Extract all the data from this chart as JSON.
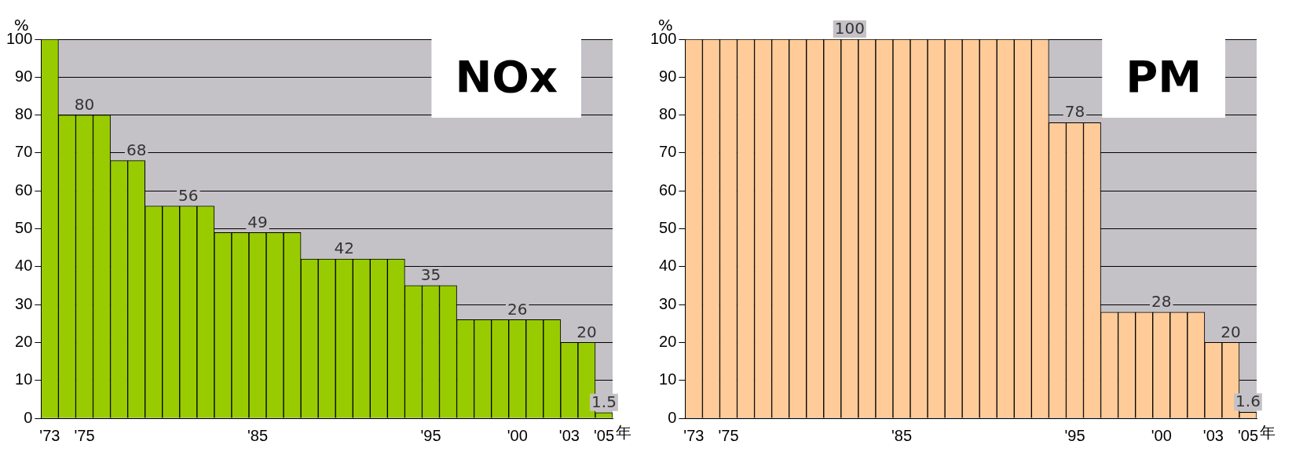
{
  "chart_data": [
    {
      "type": "bar",
      "title": "NOx",
      "xlabel": "年",
      "ylabel": "%",
      "color": "#99cc00",
      "grid": "y",
      "ylim": [
        0,
        100
      ],
      "yticks": [
        0,
        10,
        20,
        30,
        40,
        50,
        60,
        70,
        80,
        90,
        100
      ],
      "categories": [
        "'73",
        null,
        "'75",
        null,
        null,
        null,
        null,
        null,
        null,
        null,
        null,
        null,
        "'85",
        null,
        null,
        null,
        null,
        null,
        null,
        null,
        null,
        null,
        "'95",
        null,
        null,
        null,
        null,
        "'00",
        null,
        null,
        "'03",
        null,
        "'05"
      ],
      "values": [
        100,
        80,
        80,
        80,
        68,
        68,
        56,
        56,
        56,
        56,
        49,
        49,
        49,
        49,
        49,
        42,
        42,
        42,
        42,
        42,
        42,
        35,
        35,
        35,
        26,
        26,
        26,
        26,
        26,
        26,
        20,
        20,
        1.5
      ],
      "value_labels": [
        null,
        null,
        "80",
        null,
        null,
        "68",
        null,
        null,
        "56",
        null,
        null,
        null,
        "49",
        null,
        null,
        null,
        null,
        "42",
        null,
        null,
        null,
        null,
        "35",
        null,
        null,
        null,
        null,
        "26",
        null,
        null,
        null,
        "20",
        "1.5"
      ]
    },
    {
      "type": "bar",
      "title": "PM",
      "xlabel": "年",
      "ylabel": "%",
      "color": "#ffcc99",
      "grid": "y",
      "ylim": [
        0,
        100
      ],
      "yticks": [
        0,
        10,
        20,
        30,
        40,
        50,
        60,
        70,
        80,
        90,
        100
      ],
      "categories": [
        "'73",
        null,
        "'75",
        null,
        null,
        null,
        null,
        null,
        null,
        null,
        null,
        null,
        "'85",
        null,
        null,
        null,
        null,
        null,
        null,
        null,
        null,
        null,
        "'95",
        null,
        null,
        null,
        null,
        "'00",
        null,
        null,
        "'03",
        null,
        "'05"
      ],
      "values": [
        100,
        100,
        100,
        100,
        100,
        100,
        100,
        100,
        100,
        100,
        100,
        100,
        100,
        100,
        100,
        100,
        100,
        100,
        100,
        100,
        100,
        78,
        78,
        78,
        28,
        28,
        28,
        28,
        28,
        28,
        20,
        20,
        1.6
      ],
      "value_labels": [
        null,
        null,
        null,
        null,
        null,
        null,
        null,
        null,
        null,
        "100",
        null,
        null,
        null,
        null,
        null,
        null,
        null,
        null,
        null,
        null,
        null,
        null,
        "78",
        null,
        null,
        null,
        null,
        "28",
        null,
        null,
        null,
        "20",
        "1.6"
      ]
    }
  ]
}
